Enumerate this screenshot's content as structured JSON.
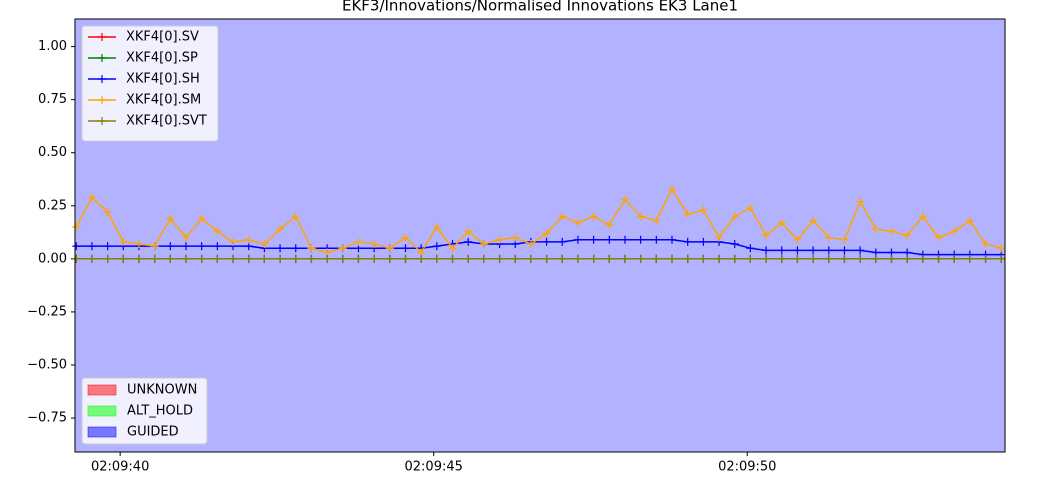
{
  "chart_data": {
    "type": "line",
    "title": "EKF3/Innovations/Normalised Innovations EK3 Lane1",
    "x": [
      39.3,
      39.55,
      39.8,
      40.05,
      40.3,
      40.55,
      40.8,
      41.05,
      41.3,
      41.55,
      41.8,
      42.05,
      42.3,
      42.55,
      42.8,
      43.05,
      43.3,
      43.55,
      43.8,
      44.05,
      44.3,
      44.55,
      44.8,
      45.05,
      45.3,
      45.55,
      45.8,
      46.05,
      46.3,
      46.55,
      46.8,
      47.05,
      47.3,
      47.55,
      47.8,
      48.05,
      48.3,
      48.55,
      48.8,
      49.05,
      49.3,
      49.55,
      49.8,
      50.05,
      50.3,
      50.55,
      50.8,
      51.05,
      51.3,
      51.55,
      51.8,
      52.05,
      52.3,
      52.55,
      52.8,
      53.05,
      53.3,
      53.55,
      53.8,
      54.05
    ],
    "series": [
      {
        "name": "XKF4[0].SV",
        "color": "#ff0000",
        "values": [
          0,
          0,
          0,
          0,
          0,
          0,
          0,
          0,
          0,
          0,
          0,
          0,
          0,
          0,
          0,
          0,
          0,
          0,
          0,
          0,
          0,
          0,
          0,
          0,
          0,
          0,
          0,
          0,
          0,
          0,
          0,
          0,
          0,
          0,
          0,
          0,
          0,
          0,
          0,
          0,
          0,
          0,
          0,
          0,
          0,
          0,
          0,
          0,
          0,
          0,
          0,
          0,
          0,
          0,
          0,
          0,
          0,
          0,
          0,
          0
        ]
      },
      {
        "name": "XKF4[0].SP",
        "color": "#008000",
        "values": [
          0,
          0,
          0,
          0,
          0,
          0,
          0,
          0,
          0,
          0,
          0,
          0,
          0,
          0,
          0,
          0,
          0,
          0,
          0,
          0,
          0,
          0,
          0,
          0,
          0,
          0,
          0,
          0,
          0,
          0,
          0,
          0,
          0,
          0,
          0,
          0,
          0,
          0,
          0,
          0,
          0,
          0,
          0,
          0,
          0,
          0,
          0,
          0,
          0,
          0,
          0,
          0,
          0,
          0,
          0,
          0,
          0,
          0,
          0,
          0
        ]
      },
      {
        "name": "XKF4[0].SH",
        "color": "#0000ff",
        "values": [
          0.06,
          0.06,
          0.06,
          0.06,
          0.06,
          0.06,
          0.06,
          0.06,
          0.06,
          0.06,
          0.06,
          0.06,
          0.05,
          0.05,
          0.05,
          0.05,
          0.05,
          0.05,
          0.05,
          0.05,
          0.05,
          0.05,
          0.05,
          0.06,
          0.07,
          0.08,
          0.07,
          0.07,
          0.07,
          0.08,
          0.08,
          0.08,
          0.09,
          0.09,
          0.09,
          0.09,
          0.09,
          0.09,
          0.09,
          0.08,
          0.08,
          0.08,
          0.07,
          0.05,
          0.04,
          0.04,
          0.04,
          0.04,
          0.04,
          0.04,
          0.04,
          0.03,
          0.03,
          0.03,
          0.02,
          0.02,
          0.02,
          0.02,
          0.02,
          0.02
        ]
      },
      {
        "name": "XKF4[0].SM",
        "color": "#ffa500",
        "values": [
          0.15,
          0.29,
          0.22,
          0.08,
          0.07,
          0.06,
          0.19,
          0.1,
          0.19,
          0.13,
          0.08,
          0.09,
          0.07,
          0.14,
          0.2,
          0.05,
          0.03,
          0.05,
          0.08,
          0.07,
          0.05,
          0.1,
          0.03,
          0.15,
          0.05,
          0.13,
          0.07,
          0.09,
          0.1,
          0.07,
          0.12,
          0.2,
          0.17,
          0.2,
          0.16,
          0.28,
          0.2,
          0.18,
          0.33,
          0.21,
          0.23,
          0.1,
          0.2,
          0.24,
          0.11,
          0.17,
          0.09,
          0.18,
          0.1,
          0.09,
          0.27,
          0.14,
          0.13,
          0.11,
          0.2,
          0.1,
          0.13,
          0.18,
          0.07,
          0.05
        ]
      },
      {
        "name": "XKF4[0].SVT",
        "color": "#808000",
        "values": [
          0,
          0,
          0,
          0,
          0,
          0,
          0,
          0,
          0,
          0,
          0,
          0,
          0,
          0,
          0,
          0,
          0,
          0,
          0,
          0,
          0,
          0,
          0,
          0,
          0,
          0,
          0,
          0,
          0,
          0,
          0,
          0,
          0,
          0,
          0,
          0,
          0,
          0,
          0,
          0,
          0,
          0,
          0,
          0,
          0,
          0,
          0,
          0,
          0,
          0,
          0,
          0,
          0,
          0,
          0,
          0,
          0,
          0,
          0,
          0
        ]
      }
    ],
    "xlim": [
      39.28,
      54.11
    ],
    "xticks": [
      {
        "value": 40,
        "label": "02:09:40"
      },
      {
        "value": 45,
        "label": "02:09:45"
      },
      {
        "value": 50,
        "label": "02:09:50"
      }
    ],
    "ylim": [
      -0.91,
      1.13
    ],
    "yticks": [
      {
        "value": -0.75,
        "label": "−0.75"
      },
      {
        "value": -0.5,
        "label": "−0.50"
      },
      {
        "value": -0.25,
        "label": "−0.25"
      },
      {
        "value": 0,
        "label": "0.00"
      },
      {
        "value": 0.25,
        "label": "0.25"
      },
      {
        "value": 0.5,
        "label": "0.50"
      },
      {
        "value": 0.75,
        "label": "0.75"
      },
      {
        "value": 1,
        "label": "1.00"
      }
    ],
    "legend": "upper left",
    "modes": [
      {
        "name": "UNKNOWN",
        "color": "#ff0000"
      },
      {
        "name": "ALT_HOLD",
        "color": "#00ff00"
      },
      {
        "name": "GUIDED",
        "color": "#0000ff"
      }
    ],
    "mode_spans": [
      {
        "mode": "GUIDED",
        "from": 39.28,
        "to": 54.11
      }
    ]
  }
}
